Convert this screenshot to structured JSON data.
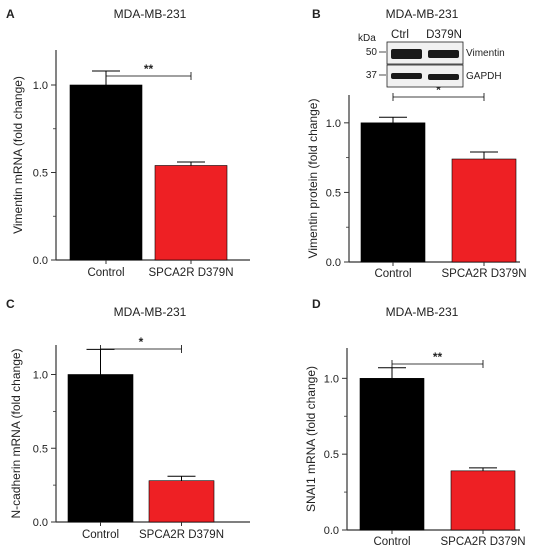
{
  "colors": {
    "control": "#000000",
    "mutant": "#ee2024",
    "axis": "#333333",
    "blot_band": "#1a1a1a"
  },
  "chart_data": [
    {
      "panel": "A",
      "type": "bar",
      "title": "MDA-MB-231",
      "ylabel": "Vimentin mRNA (fold change)",
      "categories": [
        "Control",
        "SPCA2R D379N"
      ],
      "values": [
        1.0,
        0.54
      ],
      "errors": [
        0.08,
        0.02
      ],
      "ylim": [
        0,
        1.2
      ],
      "yticks": [
        "0.0",
        "0.5",
        "1.0"
      ],
      "significance": "**"
    },
    {
      "panel": "B",
      "type": "bar",
      "title": "MDA-MB-231",
      "ylabel": "Vimentin protein (fold change)",
      "categories": [
        "Control",
        "SPCA2R D379N"
      ],
      "values": [
        1.0,
        0.74
      ],
      "errors": [
        0.04,
        0.05
      ],
      "ylim": [
        0,
        1.2
      ],
      "yticks": [
        "0.0",
        "0.5",
        "1.0"
      ],
      "significance": "*",
      "blot": {
        "kda_label": "kDa",
        "lanes": [
          "Ctrl",
          "D379N"
        ],
        "rows": [
          {
            "kda": "50",
            "label": "Vimentin"
          },
          {
            "kda": "37",
            "label": "GAPDH"
          }
        ]
      }
    },
    {
      "panel": "C",
      "type": "bar",
      "title": "MDA-MB-231",
      "ylabel": "N-cadherin mRNA (fold change)",
      "categories": [
        "Control",
        "SPCA2R D379N"
      ],
      "values": [
        1.0,
        0.28
      ],
      "errors": [
        0.17,
        0.03
      ],
      "ylim": [
        0,
        1.2
      ],
      "yticks": [
        "0.0",
        "0.5",
        "1.0"
      ],
      "significance": "*"
    },
    {
      "panel": "D",
      "type": "bar",
      "title": "MDA-MB-231",
      "ylabel": "SNAI1 mRNA (fold change)",
      "categories": [
        "Control",
        "SPCA2R D379N"
      ],
      "values": [
        1.0,
        0.39
      ],
      "errors": [
        0.07,
        0.02
      ],
      "ylim": [
        0,
        1.2
      ],
      "yticks": [
        "0.0",
        "0.5",
        "1.0"
      ],
      "significance": "**"
    }
  ]
}
